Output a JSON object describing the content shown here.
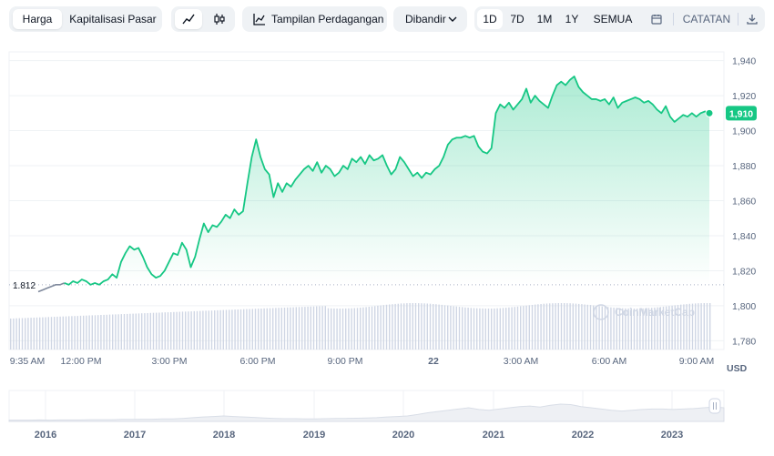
{
  "toolbar": {
    "tabs": [
      "Harga",
      "Kapitalisasi Pasar"
    ],
    "trading_view": "Tampilan Perdagangan",
    "compare": "Dibandir",
    "ranges": [
      "1D",
      "7D",
      "1M",
      "1Y",
      "SEMUA"
    ],
    "active_range": "1D",
    "notes": "CATATAN"
  },
  "watermark": "CoinMarketCap",
  "currency": "USD",
  "colors": {
    "line": "#16c784",
    "open_line": "#808a9d",
    "volume": "#cfd6e4",
    "price_badge": "#16c784"
  },
  "chart_data": {
    "type": "line",
    "x_labels": [
      "9:35 AM",
      "12:00 PM",
      "3:00 PM",
      "6:00 PM",
      "9:00 PM",
      "22",
      "3:00 AM",
      "6:00 AM",
      "9:00 AM"
    ],
    "y_ticks": [
      "1,940",
      "1,920",
      "1,900",
      "1,880",
      "1,860",
      "1,840",
      "1,820",
      "1,800",
      "1,780"
    ],
    "ylim": [
      1775,
      1945
    ],
    "open_value": 1812,
    "open_label": "1.812",
    "current_label": "1,910",
    "series": [
      {
        "values": [
          1808,
          1809,
          1810,
          1811,
          1812,
          1812,
          1813,
          1812,
          1814,
          1813,
          1815,
          1814,
          1812,
          1813,
          1812,
          1814,
          1815,
          1818,
          1816,
          1825,
          1830,
          1834,
          1832,
          1833,
          1828,
          1822,
          1818,
          1816,
          1817,
          1820,
          1825,
          1830,
          1829,
          1836,
          1832,
          1822,
          1828,
          1838,
          1847,
          1842,
          1846,
          1845,
          1848,
          1852,
          1850,
          1855,
          1852,
          1854,
          1870,
          1885,
          1895,
          1885,
          1878,
          1875,
          1862,
          1870,
          1865,
          1870,
          1868,
          1872,
          1875,
          1878,
          1880,
          1877,
          1882,
          1876,
          1880,
          1878,
          1874,
          1876,
          1880,
          1878,
          1884,
          1882,
          1885,
          1881,
          1886,
          1883,
          1884,
          1886,
          1880,
          1875,
          1878,
          1885,
          1882,
          1878,
          1874,
          1876,
          1873,
          1876,
          1875,
          1878,
          1880,
          1885,
          1892,
          1895,
          1896,
          1896,
          1897,
          1896,
          1897,
          1891,
          1888,
          1887,
          1890,
          1910,
          1915,
          1913,
          1916,
          1912,
          1915,
          1918,
          1924,
          1916,
          1920,
          1917,
          1915,
          1913,
          1920,
          1926,
          1928,
          1926,
          1929,
          1931,
          1925,
          1922,
          1920,
          1918,
          1918,
          1917,
          1918,
          1915,
          1919,
          1913,
          1916,
          1917,
          1918,
          1919,
          1918,
          1916,
          1917,
          1915,
          1912,
          1910,
          1914,
          1908,
          1905,
          1907,
          1909,
          1908,
          1910,
          1908,
          1910,
          1911,
          1910
        ]
      }
    ],
    "navigator": {
      "x_labels": [
        "2016",
        "2017",
        "2018",
        "2019",
        "2020",
        "2021",
        "2022",
        "2023"
      ],
      "values": [
        0.05,
        0.05,
        0.05,
        0.06,
        0.05,
        0.06,
        0.06,
        0.06,
        0.07,
        0.07,
        0.07,
        0.08,
        0.08,
        0.09,
        0.09,
        0.1,
        0.1,
        0.12,
        0.15,
        0.18,
        0.2,
        0.22,
        0.2,
        0.18,
        0.16,
        0.14,
        0.12,
        0.11,
        0.11,
        0.1,
        0.1,
        0.11,
        0.12,
        0.12,
        0.13,
        0.14,
        0.15,
        0.18,
        0.2,
        0.22,
        0.28,
        0.35,
        0.4,
        0.45,
        0.5,
        0.55,
        0.48,
        0.45,
        0.5,
        0.55,
        0.6,
        0.62,
        0.58,
        0.65,
        0.7,
        0.68,
        0.6,
        0.55,
        0.5,
        0.45,
        0.42,
        0.45,
        0.48,
        0.5,
        0.5,
        0.48,
        0.5,
        0.52,
        0.55,
        0.58,
        0.55
      ]
    }
  }
}
